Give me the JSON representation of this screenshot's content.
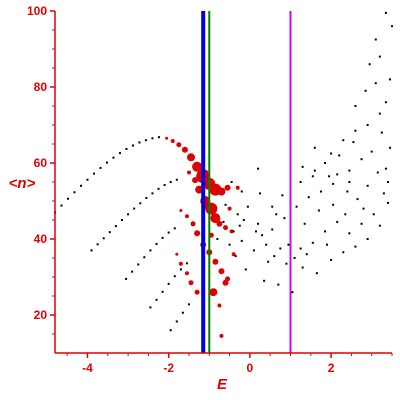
{
  "chart_data": {
    "type": "scatter",
    "title": "",
    "xlabel": "E",
    "ylabel": "<n>",
    "xlim": [
      -4.8,
      3.5
    ],
    "ylim": [
      10,
      100
    ],
    "x_ticks": [
      -4,
      -2,
      0,
      2
    ],
    "x_tick_labels": [
      "-4",
      "-2",
      "0",
      "2"
    ],
    "y_ticks": [
      20,
      40,
      60,
      80,
      100
    ],
    "y_tick_labels": [
      "20",
      "40",
      "60",
      "80",
      "100"
    ],
    "grid": false,
    "legend": "none",
    "colors": {
      "axes": "#e00000",
      "black_points": "#000000",
      "red_points": "#e00000",
      "vline_blue": "#0000e0",
      "vline_green": "#008000",
      "vline_magenta": "#e000e0"
    },
    "vertical_lines": [
      {
        "x": -1.15,
        "color": "#0000e0"
      },
      {
        "x": -1.0,
        "color": "#008000"
      },
      {
        "x": 1.0,
        "color": "#e000e0"
      }
    ],
    "series": [
      {
        "color": "#000000",
        "values": [
          [
            -4.8,
            47.0
          ],
          [
            -4.64,
            48.8
          ],
          [
            -4.48,
            50.6
          ],
          [
            -4.32,
            52.3
          ],
          [
            -4.16,
            54.0
          ],
          [
            -4.0,
            55.6
          ],
          [
            -3.84,
            57.2
          ],
          [
            -3.68,
            58.7
          ],
          [
            -3.52,
            60.1
          ],
          [
            -3.36,
            61.4
          ],
          [
            -3.2,
            62.6
          ],
          [
            -3.04,
            63.7
          ],
          [
            -2.88,
            64.6
          ],
          [
            -2.72,
            65.4
          ],
          [
            -2.56,
            66.0
          ],
          [
            -2.4,
            66.5
          ],
          [
            -2.24,
            66.8
          ],
          [
            -3.9,
            37.0
          ],
          [
            -3.75,
            38.6
          ],
          [
            -3.6,
            40.2
          ],
          [
            -3.45,
            41.8
          ],
          [
            -3.3,
            43.4
          ],
          [
            -3.15,
            45.0
          ],
          [
            -3.0,
            46.5
          ],
          [
            -2.85,
            48.0
          ],
          [
            -2.7,
            49.4
          ],
          [
            -2.55,
            50.8
          ],
          [
            -2.4,
            52.0
          ],
          [
            -2.25,
            53.2
          ],
          [
            -2.1,
            54.2
          ],
          [
            -1.95,
            55.0
          ],
          [
            -1.8,
            55.6
          ],
          [
            -3.05,
            29.5
          ],
          [
            -2.9,
            31.4
          ],
          [
            -2.75,
            33.3
          ],
          [
            -2.6,
            35.2
          ],
          [
            -2.45,
            37.0
          ],
          [
            -2.3,
            38.7
          ],
          [
            -2.15,
            40.3
          ],
          [
            -2.0,
            41.7
          ],
          [
            -1.85,
            42.8
          ],
          [
            -2.45,
            22.0
          ],
          [
            -2.3,
            24.0
          ],
          [
            -2.15,
            26.1
          ],
          [
            -2.0,
            28.2
          ],
          [
            -1.85,
            30.2
          ],
          [
            -1.7,
            32.0
          ],
          [
            -1.55,
            33.6
          ],
          [
            -1.95,
            16.0
          ],
          [
            -1.8,
            18.3
          ],
          [
            -1.65,
            20.6
          ],
          [
            -1.5,
            22.8
          ],
          [
            1.0,
            60.5
          ],
          [
            1.3,
            59.0
          ],
          [
            1.6,
            58.0
          ],
          [
            1.95,
            56.5
          ],
          [
            2.2,
            62.0
          ],
          [
            2.55,
            65.5
          ],
          [
            2.9,
            70.0
          ],
          [
            3.2,
            73.0
          ],
          [
            3.35,
            76.0
          ],
          [
            3.45,
            82.0
          ],
          [
            3.5,
            96.0
          ],
          [
            3.35,
            99.5
          ],
          [
            3.1,
            92.5
          ],
          [
            3.2,
            88.0
          ],
          [
            2.95,
            86.0
          ],
          [
            3.45,
            64.0
          ],
          [
            3.4,
            55.0
          ],
          [
            3.4,
            49.5
          ],
          [
            3.2,
            43.5
          ],
          [
            2.9,
            40.0
          ],
          [
            2.6,
            38.0
          ],
          [
            2.3,
            36.5
          ],
          [
            2.0,
            34.5
          ],
          [
            1.65,
            31.0
          ],
          [
            1.3,
            32.5
          ],
          [
            1.1,
            35.0
          ],
          [
            0.75,
            37.5
          ],
          [
            0.45,
            34.0
          ],
          [
            0.1,
            37.0
          ],
          [
            -0.2,
            39.5
          ],
          [
            -0.4,
            42.0
          ],
          [
            -0.15,
            45.0
          ],
          [
            0.2,
            44.0
          ],
          [
            0.55,
            42.5
          ],
          [
            0.85,
            45.5
          ],
          [
            1.15,
            48.5
          ],
          [
            1.45,
            51.0
          ],
          [
            1.75,
            52.5
          ],
          [
            2.05,
            49.0
          ],
          [
            2.35,
            46.5
          ],
          [
            2.65,
            50.5
          ],
          [
            2.9,
            54.0
          ],
          [
            3.15,
            57.5
          ],
          [
            2.45,
            58.0
          ],
          [
            2.05,
            54.5
          ],
          [
            1.7,
            47.5
          ],
          [
            1.35,
            44.0
          ],
          [
            1.0,
            41.0
          ],
          [
            0.65,
            46.5
          ],
          [
            0.3,
            41.0
          ],
          [
            -0.05,
            48.5
          ],
          [
            -0.3,
            46.5
          ],
          [
            -0.6,
            49.0
          ],
          [
            -0.5,
            38.5
          ],
          [
            -0.1,
            32.0
          ],
          [
            0.35,
            29.0
          ],
          [
            0.7,
            28.0
          ],
          [
            1.05,
            26.0
          ],
          [
            0.8,
            51.5
          ],
          [
            0.55,
            48.5
          ],
          [
            0.25,
            52.0
          ],
          [
            1.25,
            55.0
          ],
          [
            1.55,
            56.5
          ],
          [
            1.85,
            60.0
          ],
          [
            2.15,
            57.0
          ],
          [
            2.45,
            55.0
          ],
          [
            2.75,
            61.0
          ],
          [
            3.0,
            63.0
          ],
          [
            3.25,
            68.0
          ],
          [
            2.6,
            68.5
          ],
          [
            2.3,
            66.0
          ],
          [
            2.0,
            62.5
          ],
          [
            3.35,
            58.5
          ],
          [
            3.05,
            46.5
          ],
          [
            2.75,
            44.0
          ],
          [
            2.45,
            41.5
          ],
          [
            2.15,
            44.5
          ],
          [
            1.85,
            42.0
          ],
          [
            1.55,
            39.0
          ],
          [
            1.25,
            37.5
          ],
          [
            0.95,
            38.5
          ],
          [
            0.6,
            35.5
          ],
          [
            0.15,
            42.0
          ],
          [
            -0.25,
            43.5
          ],
          [
            -0.65,
            44.5
          ],
          [
            -0.8,
            40.0
          ],
          [
            -0.35,
            35.5
          ],
          [
            0.4,
            38.5
          ],
          [
            0.9,
            33.5
          ],
          [
            1.4,
            36.0
          ],
          [
            1.9,
            38.5
          ],
          [
            2.4,
            52.5
          ],
          [
            2.8,
            48.0
          ],
          [
            3.3,
            52.0
          ],
          [
            2.6,
            75.0
          ],
          [
            2.85,
            79.0
          ],
          [
            3.1,
            81.0
          ],
          [
            1.6,
            64.0
          ],
          [
            0.2,
            58.5
          ],
          [
            -0.45,
            55.0
          ],
          [
            -0.2,
            52.5
          ]
        ]
      },
      {
        "color": "#e00000",
        "values": [
          [
            -2.05,
            66.5,
            1.5
          ],
          [
            -1.9,
            65.8,
            2
          ],
          [
            -1.75,
            64.8,
            2.5
          ],
          [
            -1.6,
            63.5,
            3
          ],
          [
            -1.45,
            61.5,
            4
          ],
          [
            -1.3,
            59.0,
            5
          ],
          [
            -1.15,
            56.5,
            7
          ],
          [
            -1.0,
            54.5,
            6
          ],
          [
            -0.85,
            53.0,
            6
          ],
          [
            -0.7,
            52.5,
            4
          ],
          [
            -1.5,
            57.5,
            2
          ],
          [
            -1.35,
            55.5,
            3
          ],
          [
            -1.25,
            53.0,
            4
          ],
          [
            -1.1,
            50.0,
            5
          ],
          [
            -0.95,
            48.0,
            6
          ],
          [
            -0.85,
            45.5,
            5
          ],
          [
            -0.75,
            44.0,
            3
          ],
          [
            -0.6,
            43.0,
            2.5
          ],
          [
            -0.45,
            42.0,
            2
          ],
          [
            -1.7,
            47.5,
            1.5
          ],
          [
            -1.55,
            46.0,
            2
          ],
          [
            -1.4,
            44.0,
            2.5
          ],
          [
            -1.3,
            41.5,
            3
          ],
          [
            -1.15,
            38.5,
            3
          ],
          [
            -1.0,
            36.5,
            3
          ],
          [
            -0.85,
            34.0,
            3
          ],
          [
            -0.7,
            31.5,
            3
          ],
          [
            -0.55,
            29.5,
            2.5
          ],
          [
            -1.8,
            36.0,
            1.5
          ],
          [
            -1.7,
            33.5,
            2
          ],
          [
            -1.55,
            31.0,
            2
          ],
          [
            -1.45,
            28.5,
            2.5
          ],
          [
            -1.3,
            26.0,
            2.5
          ],
          [
            -0.9,
            26.0,
            4
          ],
          [
            -0.6,
            28.5,
            3
          ],
          [
            -0.75,
            22.5,
            2
          ],
          [
            -0.7,
            14.5,
            2
          ],
          [
            -0.4,
            36.0,
            2
          ],
          [
            -0.5,
            48.0,
            2
          ],
          [
            -0.3,
            53.5,
            2
          ],
          [
            -1.05,
            48.5,
            3
          ],
          [
            -0.95,
            41.0,
            2.5
          ],
          [
            -0.55,
            53.5,
            3
          ]
        ]
      }
    ]
  }
}
